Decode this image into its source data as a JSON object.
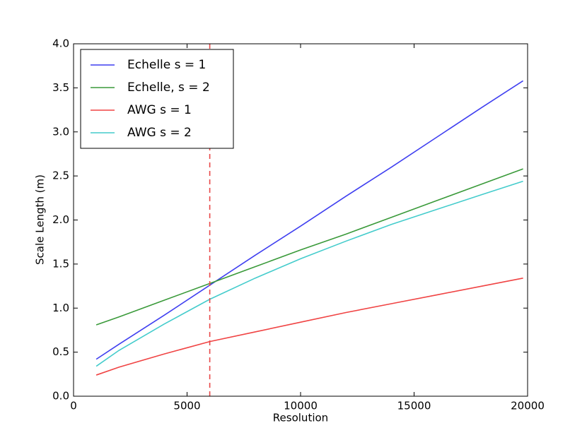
{
  "chart_data": {
    "type": "line",
    "xlabel": "Resolution",
    "ylabel": "Scale Length (m)",
    "x": [
      1000,
      2000,
      4000,
      6000,
      8000,
      10000,
      12000,
      14000,
      16000,
      18000,
      19800
    ],
    "series": [
      {
        "name": "Echelle s = 1",
        "color": "#3f3ff0",
        "values": [
          0.42,
          0.59,
          0.92,
          1.26,
          1.6,
          1.93,
          2.27,
          2.6,
          2.94,
          3.28,
          3.58
        ]
      },
      {
        "name": "Echelle, s = 2",
        "color": "#3a9a3a",
        "values": [
          0.81,
          0.9,
          1.09,
          1.28,
          1.47,
          1.66,
          1.84,
          2.03,
          2.22,
          2.41,
          2.58
        ]
      },
      {
        "name": "AWG s = 1",
        "color": "#f04444",
        "values": [
          0.24,
          0.33,
          0.48,
          0.62,
          0.73,
          0.84,
          0.95,
          1.05,
          1.15,
          1.25,
          1.34
        ]
      },
      {
        "name": "AWG s = 2",
        "color": "#44cccc",
        "values": [
          0.34,
          0.52,
          0.82,
          1.1,
          1.34,
          1.56,
          1.76,
          1.95,
          2.12,
          2.29,
          2.44
        ]
      }
    ],
    "vline": {
      "x": 6000,
      "color": "#e84848"
    },
    "xlim": [
      0,
      20000
    ],
    "xticks": [
      0,
      5000,
      10000,
      15000,
      20000
    ],
    "ylim": [
      0,
      4
    ],
    "yticks": [
      {
        "value": 0,
        "label": "0.0"
      },
      0.5,
      {
        "value": 1,
        "label": "1.0"
      },
      1.5,
      {
        "value": 2,
        "label": "2.0"
      },
      2.5,
      {
        "value": 3,
        "label": "3.0"
      },
      3.5,
      {
        "value": 4,
        "label": "4.0"
      }
    ],
    "legend": "upper left",
    "grid": false
  }
}
